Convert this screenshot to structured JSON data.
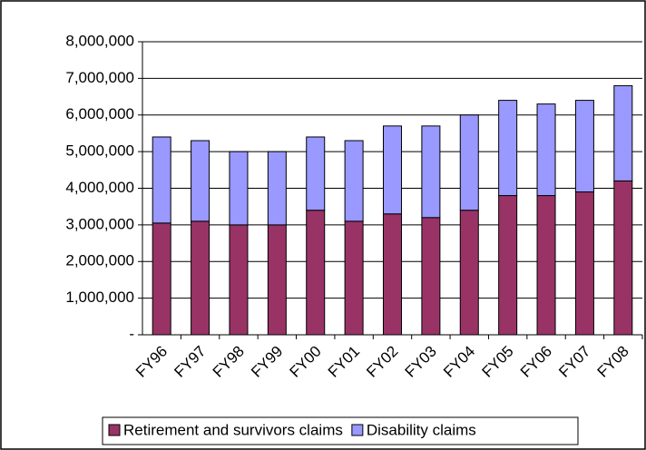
{
  "chart_data": {
    "type": "stacked-bar",
    "categories": [
      "FY96",
      "FY97",
      "FY98",
      "FY99",
      "FY00",
      "FY01",
      "FY02",
      "FY03",
      "FY04",
      "FY05",
      "FY06",
      "FY07",
      "FY08"
    ],
    "series": [
      {
        "name": "Retirement and survivors claims",
        "color": "#993366",
        "values": [
          3050000,
          3100000,
          3000000,
          3000000,
          3400000,
          3100000,
          3300000,
          3200000,
          3400000,
          3800000,
          3800000,
          3900000,
          4200000
        ]
      },
      {
        "name": "Disability claims",
        "color": "#9999ff",
        "values": [
          2350000,
          2200000,
          2000000,
          2000000,
          2000000,
          2200000,
          2400000,
          2500000,
          2600000,
          2600000,
          2500000,
          2500000,
          2600000
        ]
      }
    ],
    "ylim": [
      0,
      8000000
    ],
    "yticks": [
      {
        "value": 0,
        "label": "-"
      },
      {
        "value": 1000000,
        "label": "1,000,000"
      },
      {
        "value": 2000000,
        "label": "2,000,000"
      },
      {
        "value": 3000000,
        "label": "3,000,000"
      },
      {
        "value": 4000000,
        "label": "4,000,000"
      },
      {
        "value": 5000000,
        "label": "5,000,000"
      },
      {
        "value": 6000000,
        "label": "6,000,000"
      },
      {
        "value": 7000000,
        "label": "7,000,000"
      },
      {
        "value": 8000000,
        "label": "8,000,000"
      }
    ],
    "grid": true,
    "legend": "bottom"
  }
}
